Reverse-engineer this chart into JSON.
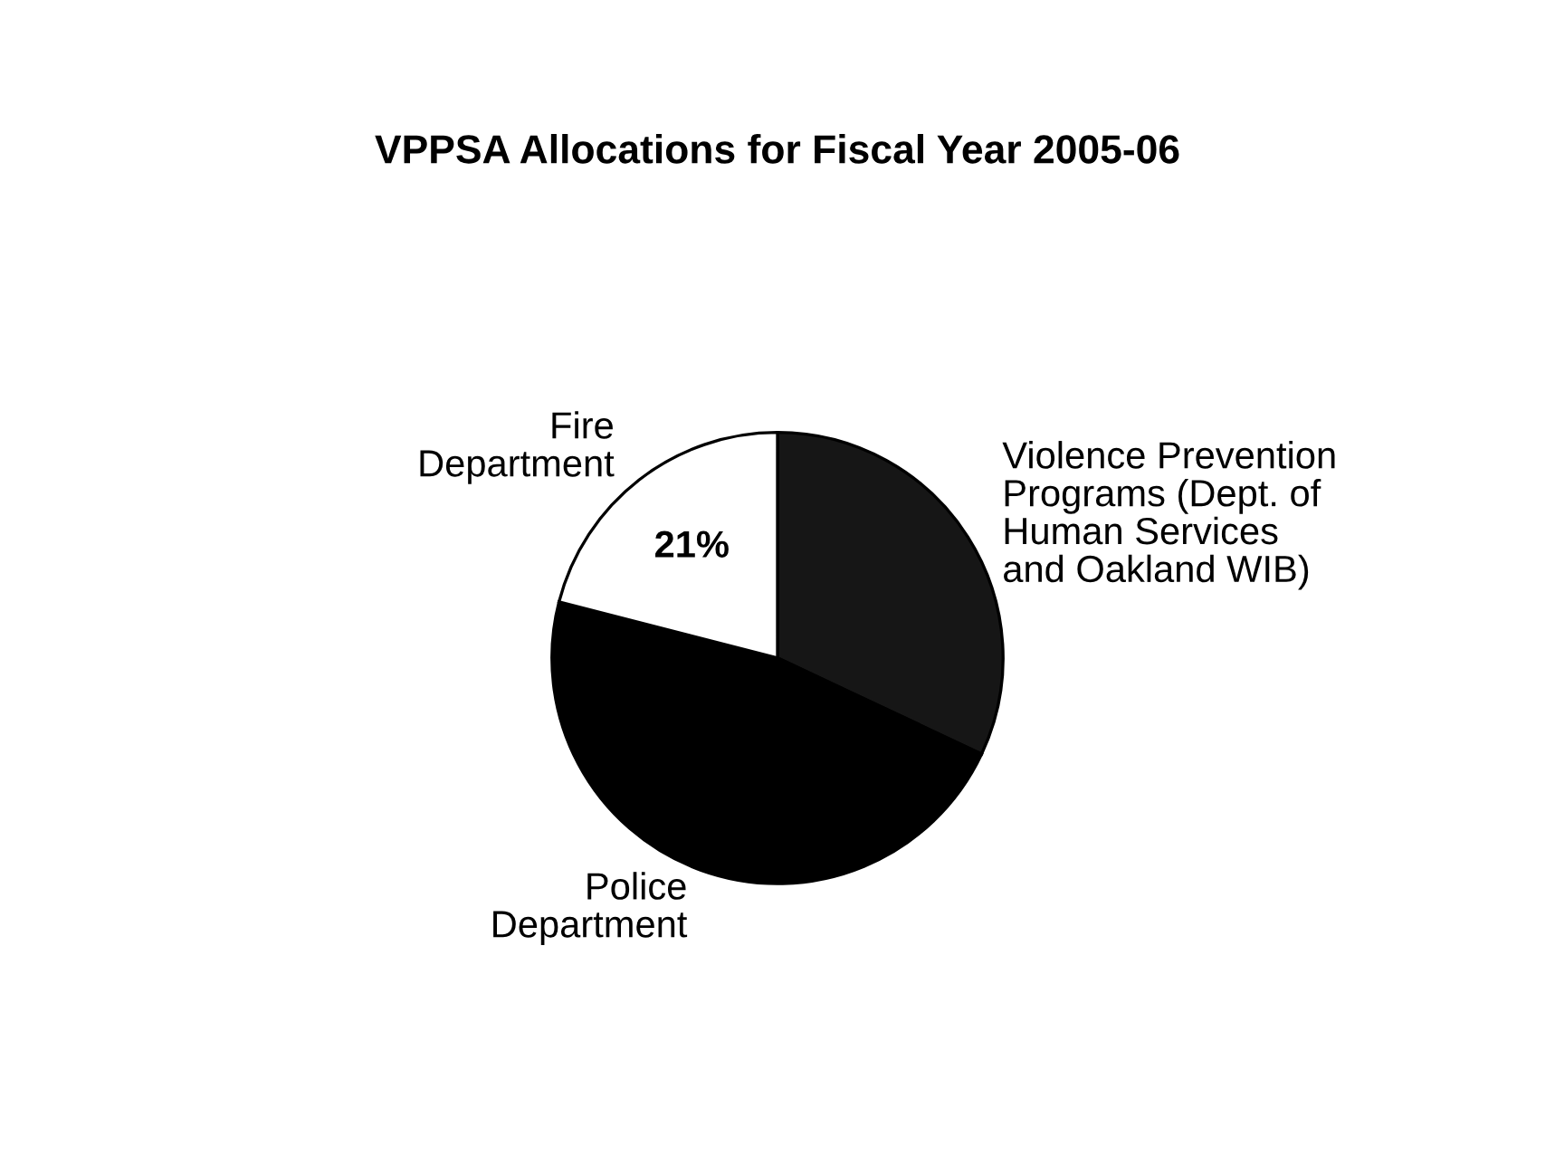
{
  "chart_data": {
    "type": "pie",
    "title": "VPPSA Allocations for Fiscal Year 2005-06",
    "categories": [
      "Violence Prevention\nPrograms (Dept. of\nHuman Services\nand Oakland WIB)",
      "Police\nDepartment",
      "Fire\nDepartment"
    ],
    "values": [
      32,
      47,
      21
    ],
    "colors": [
      "#161616",
      "#000000",
      "#ffffff"
    ],
    "value_labels": [
      null,
      null,
      "21%"
    ],
    "legend": false
  }
}
